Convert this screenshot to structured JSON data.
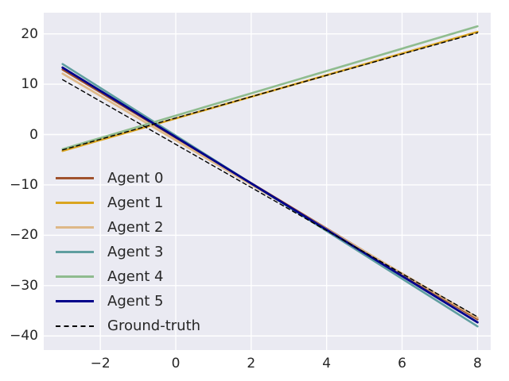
{
  "figure": {
    "background_color": "#ffffff",
    "plot_background_color": "#eaeaf2",
    "grid_color": "#ffffff",
    "tick_color": "#262626"
  },
  "legend": {
    "entries": [
      {
        "label": "Agent 0",
        "color": "#A0522D",
        "style": "solid"
      },
      {
        "label": "Agent 1",
        "color": "#DAA520",
        "style": "solid"
      },
      {
        "label": "Agent 2",
        "color": "#DEB887",
        "style": "solid"
      },
      {
        "label": "Agent 3",
        "color": "#5F9EA0",
        "style": "solid"
      },
      {
        "label": "Agent 4",
        "color": "#8FBC8F",
        "style": "solid"
      },
      {
        "label": "Agent 5",
        "color": "#00008B",
        "style": "solid"
      },
      {
        "label": "Ground-truth",
        "color": "#000000",
        "style": "dashed"
      }
    ]
  },
  "chart_data": {
    "type": "line",
    "title": "",
    "xlabel": "",
    "ylabel": "",
    "xlim": [
      -3.5,
      8.35
    ],
    "ylim": [
      -42.8,
      24.2
    ],
    "xticks": [
      -2,
      0,
      2,
      4,
      6,
      8
    ],
    "yticks": [
      20,
      10,
      0,
      -10,
      -20,
      -30,
      -40
    ],
    "xtick_labels": [
      "−2",
      "0",
      "2",
      "4",
      "6",
      "8"
    ],
    "ytick_labels": [
      "20",
      "10",
      "0",
      "−10",
      "−20",
      "−30",
      "−40"
    ],
    "grid": true,
    "legend_position": "lower-left-inside",
    "x": [
      -3,
      8
    ],
    "series": [
      {
        "name": "Agent 0",
        "color": "#A0522D",
        "dash": false,
        "width": 2.6,
        "values": [
          12.9,
          -36.7
        ]
      },
      {
        "name": "Agent 1",
        "color": "#DAA520",
        "dash": false,
        "width": 2.6,
        "values": [
          -3.25,
          20.4
        ]
      },
      {
        "name": "Agent 2",
        "color": "#DEB887",
        "dash": false,
        "width": 2.6,
        "values": [
          12.1,
          -36.4
        ]
      },
      {
        "name": "Agent 3",
        "color": "#5F9EA0",
        "dash": false,
        "width": 2.6,
        "values": [
          14.0,
          -38.1
        ]
      },
      {
        "name": "Agent 4",
        "color": "#8FBC8F",
        "dash": false,
        "width": 2.6,
        "values": [
          -2.9,
          21.5
        ]
      },
      {
        "name": "Agent 5",
        "color": "#00008B",
        "dash": false,
        "width": 2.8,
        "values": [
          13.3,
          -37.3
        ]
      },
      {
        "name": "Ground-truth (descending)",
        "color": "#000000",
        "dash": true,
        "width": 1.4,
        "values": [
          10.9,
          -36.2
        ]
      },
      {
        "name": "Ground-truth (ascending)",
        "color": "#000000",
        "dash": true,
        "width": 1.4,
        "values": [
          -3.05,
          20.2
        ]
      }
    ]
  }
}
